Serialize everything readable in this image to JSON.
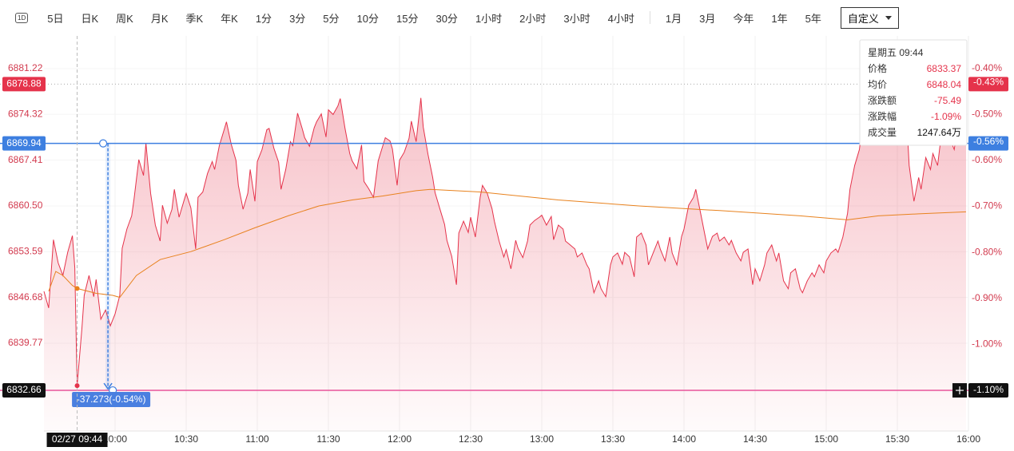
{
  "toolbar": {
    "icon": "1D",
    "periods": [
      "5日",
      "日K",
      "周K",
      "月K",
      "季K",
      "年K",
      "1分",
      "3分",
      "5分",
      "10分",
      "15分",
      "30分",
      "1小时",
      "2小时",
      "3小时",
      "4小时"
    ],
    "ranges": [
      "1月",
      "3月",
      "今年",
      "1年",
      "5年"
    ],
    "selected": "自定义"
  },
  "tooltip": {
    "title": "星期五 09:44",
    "rows": [
      {
        "label": "涨跌额",
        "value": -75.49
      },
      {
        "label": "涨跌幅",
        "value": "-1.09%"
      },
      {
        "label": "成交量",
        "value": "1247.64万"
      }
    ]
  },
  "chart_data": {
    "type": "line",
    "xlim": [
      "09:30",
      "16:00"
    ],
    "xticks": [
      "10:00",
      "10:30",
      "11:00",
      "11:30",
      "12:00",
      "12:30",
      "13:00",
      "13:30",
      "14:00",
      "14:30",
      "15:00",
      "15:30",
      "16:00"
    ],
    "ylim": [
      6826.52,
      6886.16
    ],
    "yticks": [
      6839.77,
      6846.68,
      6853.59,
      {
        "value": 6860.5,
        "label": "6860.50"
      },
      6867.41,
      6874.32,
      6881.22
    ],
    "y2lim": [
      -1.189,
      -0.329
    ],
    "y2ticks": [
      {
        "value": -1.0,
        "label": "-1.00%"
      },
      {
        "value": -0.9,
        "label": "-0.90%"
      },
      {
        "value": -0.8,
        "label": "-0.80%"
      },
      {
        "value": -0.7,
        "label": "-0.70%"
      },
      {
        "value": -0.6,
        "label": "-0.60%"
      },
      {
        "value": -0.5,
        "label": "-0.50%"
      },
      {
        "value": -0.4,
        "label": "-0.40%"
      }
    ],
    "grid": true,
    "series": [
      {
        "name": "价格",
        "color": "#e5334b",
        "fill": true,
        "x": [
          "09:30",
          "09:32",
          "09:34",
          "09:36",
          "09:38",
          "09:40",
          "09:42",
          "09:43",
          "09:44",
          "09:46",
          "09:47",
          "09:49",
          "09:51",
          "09:52",
          "09:54",
          "09:56",
          "09:58",
          "10:00",
          "10:02",
          "10:03",
          "10:05",
          "10:07",
          "10:08",
          "10:10",
          "10:12",
          "10:13",
          "10:15",
          "10:17",
          "10:19",
          "10:20",
          "10:22",
          "10:24",
          "10:25",
          "10:27",
          "10:29",
          "10:30",
          "10:32",
          "10:34",
          "10:35",
          "10:37",
          "10:39",
          "10:41",
          "10:42",
          "10:44",
          "10:46",
          "10:47",
          "10:49",
          "10:51",
          "10:52",
          "10:54",
          "10:56",
          "10:57",
          "10:59",
          "11:00",
          "11:02",
          "11:04",
          "11:05",
          "11:07",
          "11:09",
          "11:10",
          "11:12",
          "11:14",
          "11:15",
          "11:17",
          "11:19",
          "11:20",
          "11:22",
          "11:24",
          "11:25",
          "11:27",
          "11:29",
          "11:30",
          "11:32",
          "11:34",
          "11:35",
          "11:37",
          "11:39",
          "11:40",
          "11:42",
          "11:44",
          "11:45",
          "11:47",
          "11:49",
          "11:51",
          "11:52",
          "11:54",
          "11:56",
          "11:57",
          "11:59",
          "12:00",
          "12:02",
          "12:04",
          "12:05",
          "12:07",
          "12:09",
          "12:10",
          "12:12",
          "12:14",
          "12:15",
          "12:17",
          "12:19",
          "12:20",
          "12:22",
          "12:24",
          "12:25",
          "12:27",
          "12:29",
          "12:30",
          "12:32",
          "12:34",
          "12:35",
          "12:37",
          "12:39",
          "12:40",
          "12:42",
          "12:44",
          "12:45",
          "12:47",
          "12:49",
          "12:50",
          "12:52",
          "12:54",
          "12:55",
          "12:57",
          "12:59",
          "13:00",
          "13:02",
          "13:04",
          "13:05",
          "13:07",
          "13:09",
          "13:10",
          "13:12",
          "13:14",
          "13:15",
          "13:17",
          "13:19",
          "13:20",
          "13:22",
          "13:24",
          "13:25",
          "13:27",
          "13:29",
          "13:30",
          "13:32",
          "13:34",
          "13:35",
          "13:37",
          "13:39",
          "13:40",
          "13:42",
          "13:44",
          "13:45",
          "13:47",
          "13:49",
          "13:50",
          "13:52",
          "13:54",
          "13:55",
          "13:57",
          "13:59",
          "14:00",
          "14:02",
          "14:04",
          "14:05",
          "14:07",
          "14:09",
          "14:10",
          "14:12",
          "14:14",
          "14:15",
          "14:17",
          "14:19",
          "14:20",
          "14:22",
          "14:24",
          "14:25",
          "14:27",
          "14:29",
          "14:30",
          "14:32",
          "14:34",
          "14:35",
          "14:37",
          "14:39",
          "14:40",
          "14:42",
          "14:44",
          "14:45",
          "14:47",
          "14:49",
          "14:50",
          "14:52",
          "14:54",
          "14:55",
          "14:57",
          "14:59",
          "15:00",
          "15:02",
          "15:04",
          "15:05",
          "15:07",
          "15:09",
          "15:10",
          "15:12",
          "15:14",
          "15:15",
          "15:17",
          "15:19",
          "15:20",
          "15:22",
          "15:24",
          "15:25",
          "15:27",
          "15:29",
          "15:30",
          "15:32",
          "15:34",
          "15:35",
          "15:37",
          "15:39",
          "15:40",
          "15:42",
          "15:44",
          "15:45",
          "15:47",
          "15:49",
          "15:50",
          "15:52",
          "15:54",
          "15:55",
          "15:57",
          "15:59"
        ],
        "values": [
          6847.6,
          6845.1,
          6855.4,
          6851.9,
          6850,
          6853.5,
          6856,
          6851.2,
          6833.37,
          6842,
          6847,
          6850,
          6846.8,
          6849.4,
          6843.4,
          6844.8,
          6842.4,
          6844.2,
          6847,
          6854.1,
          6857,
          6859,
          6861.5,
          6867.5,
          6865.1,
          6870,
          6862.4,
          6857.6,
          6855.2,
          6860.6,
          6857.9,
          6860,
          6863,
          6858.8,
          6861.2,
          6862.4,
          6860.2,
          6854,
          6861.8,
          6862.6,
          6865.4,
          6867.2,
          6866,
          6869.6,
          6872,
          6873.2,
          6869.8,
          6867.4,
          6863.6,
          6860,
          6862.4,
          6866,
          6861.2,
          6867.2,
          6869,
          6872,
          6872.2,
          6869.2,
          6867.1,
          6863,
          6866,
          6870.2,
          6869.6,
          6874.5,
          6872.1,
          6870.8,
          6869.5,
          6872.3,
          6873.2,
          6874.4,
          6870.9,
          6875,
          6874.3,
          6875.6,
          6876.7,
          6872.2,
          6868.4,
          6867.3,
          6866.1,
          6869.7,
          6864.2,
          6863.1,
          6861.8,
          6867.3,
          6868.5,
          6870.8,
          6870.3,
          6869.1,
          6863.6,
          6867.4,
          6868.6,
          6870.7,
          6873.3,
          6870.2,
          6876.8,
          6872.4,
          6868.3,
          6864.8,
          6862.5,
          6860.1,
          6857.7,
          6855.3,
          6852.9,
          6848.6,
          6856.4,
          6858.2,
          6856.5,
          6858.8,
          6855.8,
          6861.8,
          6863.6,
          6862.4,
          6860.1,
          6858.2,
          6855.2,
          6852.8,
          6853.9,
          6851,
          6855.3,
          6854.1,
          6852.7,
          6855.2,
          6857.6,
          6858.3,
          6858.8,
          6859.1,
          6857.6,
          6858.9,
          6855.4,
          6857.6,
          6857,
          6855.2,
          6854.6,
          6854,
          6852.8,
          6853.4,
          6851.6,
          6851,
          6847.4,
          6849.2,
          6848,
          6846.8,
          6851.6,
          6852.8,
          6853.4,
          6851.7,
          6853.5,
          6852.8,
          6849.8,
          6855.8,
          6856.4,
          6854.6,
          6851.6,
          6853.4,
          6855.2,
          6854,
          6852.2,
          6855.8,
          6853.4,
          6851.6,
          6855.9,
          6857,
          6860.6,
          6861.8,
          6863,
          6859.4,
          6855.8,
          6854,
          6855.9,
          6856.4,
          6855.2,
          6855.8,
          6854.6,
          6855.3,
          6853.4,
          6852.2,
          6853.5,
          6854,
          6848.6,
          6851,
          6849.2,
          6851.6,
          6853.4,
          6854.6,
          6852.2,
          6853.4,
          6849.2,
          6848,
          6850.4,
          6851,
          6848,
          6847.4,
          6849.2,
          6850.4,
          6849.8,
          6851.6,
          6850.4,
          6852.2,
          6853.4,
          6854,
          6853.5,
          6855.8,
          6859.4,
          6863,
          6866.6,
          6869,
          6872,
          6873.8,
          6871.4,
          6872.6,
          6875,
          6873.2,
          6871.4,
          6872.6,
          6873.8,
          6875,
          6870.8,
          6873.2,
          6866.6,
          6861.2,
          6864.8,
          6863,
          6867.8,
          6866,
          6868.4,
          6866.6,
          6872.6,
          6870.2,
          6870.8,
          6869,
          6871.4,
          6870.2,
          6871
        ]
      },
      {
        "name": "均价",
        "color": "#e8821e",
        "x": [
          "09:32",
          "09:35",
          "09:38",
          "09:42",
          "09:44",
          "09:52",
          "09:59",
          "10:02",
          "10:09",
          "10:19",
          "10:32",
          "10:46",
          "10:59",
          "11:13",
          "11:26",
          "11:40",
          "11:53",
          "12:07",
          "12:13",
          "12:34",
          "13:07",
          "13:41",
          "14:15",
          "14:49",
          "15:09",
          "15:22",
          "15:39",
          "15:59"
        ],
        "values": [
          6847.6,
          6850.6,
          6850,
          6848.5,
          6848.04,
          6847.3,
          6847,
          6846.7,
          6850,
          6852.4,
          6853.6,
          6855.4,
          6857.2,
          6859,
          6860.5,
          6861.4,
          6862,
          6862.8,
          6863,
          6862.6,
          6861.4,
          6860.5,
          6859.8,
          6859,
          6858.4,
          6859,
          6859.3,
          6859.6
        ]
      }
    ],
    "levels": [
      {
        "value": 6878.88,
        "pct": {
          "value": -0.43,
          "label": "-0.43%"
        },
        "color": "#aaaaaa",
        "style": "dotted",
        "tag_color": "#e5334b"
      },
      {
        "value": 6869.94,
        "pct": {
          "value": -0.56,
          "label": "-0.56%"
        },
        "color": "#3d7fe0",
        "style": "solid",
        "tag_color": "#3d7fe0"
      },
      {
        "value": 6832.66,
        "pct": {
          "value": -1.1,
          "label": "-1.10%"
        },
        "color": "#e8559a",
        "style": "solid",
        "tag_color": "#111111"
      }
    ],
    "crosshair": {
      "time": "09:44",
      "label": "02/27 09:44"
    },
    "measure": {
      "time": "09:57",
      "label": "-37.273(-0.54%)"
    }
  }
}
